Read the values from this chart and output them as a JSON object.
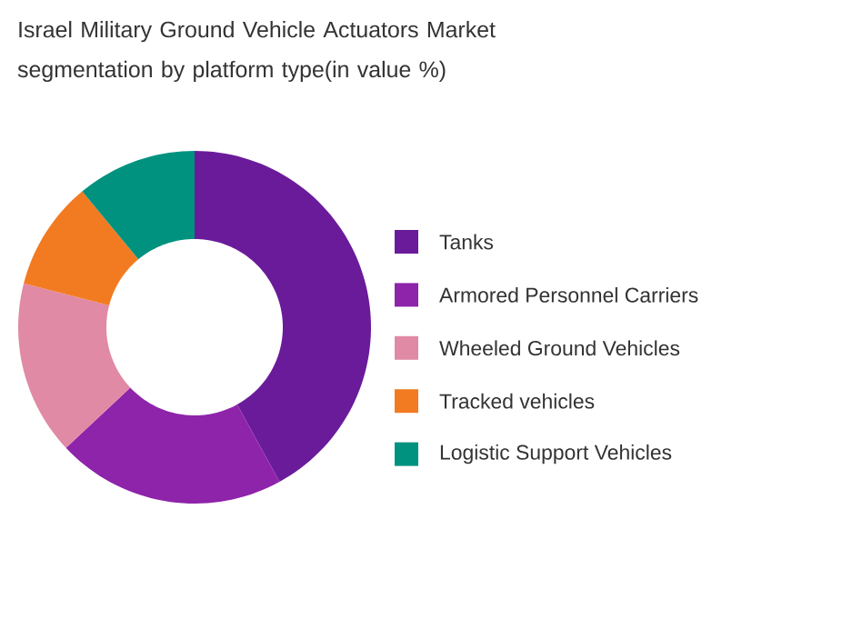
{
  "chart_data": {
    "type": "donut",
    "title": "Israel Military Ground Vehicle Actuators Market segmentation by platform type(in value %)",
    "categories": [
      "Tanks",
      "Armored Personnel Carriers",
      "Wheeled Ground Vehicles",
      "Tracked vehicles",
      "Logistic Support Vehicles"
    ],
    "values": [
      42,
      21,
      16,
      10,
      11
    ],
    "colors": [
      "#6a1b9a",
      "#8e24aa",
      "#e08aa5",
      "#f27b22",
      "#00927f"
    ],
    "legend": "right"
  }
}
